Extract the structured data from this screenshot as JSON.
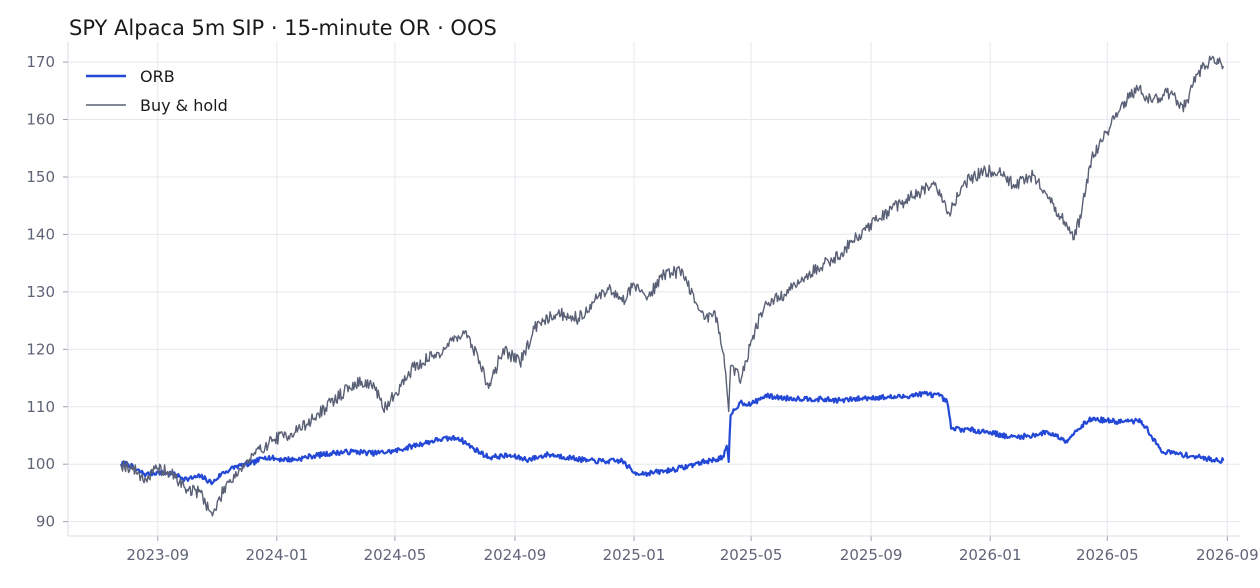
{
  "chart_data": {
    "type": "line",
    "title": "SPY Alpaca 5m SIP · 15-minute OR · OOS",
    "xlabel": "",
    "ylabel": "",
    "xlim": [
      "2023-06-01",
      "2026-09-14"
    ],
    "ylim": [
      87.5,
      173.5
    ],
    "x_ticks": [
      "2023-09",
      "2024-01",
      "2024-05",
      "2024-09",
      "2025-01",
      "2025-05",
      "2025-09",
      "2026-01",
      "2026-05",
      "2026-09"
    ],
    "y_ticks": [
      90,
      100,
      110,
      120,
      130,
      140,
      150,
      160,
      170
    ],
    "grid": true,
    "legend_position": "top-left",
    "colors": {
      "ORB": "#2448d6",
      "Buy & hold": "#5a6075",
      "grid": "#e6e8ee",
      "tick_text": "#5f6577"
    },
    "series": [
      {
        "name": "ORB",
        "points": [
          [
            "2023-07-25",
            100.0
          ],
          [
            "2023-08-01",
            100.1
          ],
          [
            "2023-08-10",
            99.0
          ],
          [
            "2023-08-20",
            98.2
          ],
          [
            "2023-09-01",
            98.6
          ],
          [
            "2023-09-15",
            98.3
          ],
          [
            "2023-10-01",
            97.4
          ],
          [
            "2023-10-15",
            97.9
          ],
          [
            "2023-10-27",
            96.7
          ],
          [
            "2023-11-05",
            98.3
          ],
          [
            "2023-11-20",
            99.6
          ],
          [
            "2023-12-05",
            100.0
          ],
          [
            "2023-12-20",
            101.3
          ],
          [
            "2024-01-01",
            100.9
          ],
          [
            "2024-01-20",
            100.8
          ],
          [
            "2024-02-05",
            101.4
          ],
          [
            "2024-03-01",
            102.0
          ],
          [
            "2024-03-20",
            102.2
          ],
          [
            "2024-04-10",
            101.9
          ],
          [
            "2024-05-01",
            102.3
          ],
          [
            "2024-05-20",
            103.2
          ],
          [
            "2024-06-15",
            104.3
          ],
          [
            "2024-07-05",
            104.6
          ],
          [
            "2024-07-20",
            102.8
          ],
          [
            "2024-08-05",
            101.2
          ],
          [
            "2024-08-25",
            101.5
          ],
          [
            "2024-09-15",
            100.8
          ],
          [
            "2024-10-05",
            101.7
          ],
          [
            "2024-10-25",
            101.2
          ],
          [
            "2024-11-15",
            100.6
          ],
          [
            "2024-12-05",
            100.5
          ],
          [
            "2024-12-20",
            100.6
          ],
          [
            "2025-01-01",
            98.5
          ],
          [
            "2025-01-15",
            98.4
          ],
          [
            "2025-02-01",
            98.8
          ],
          [
            "2025-02-20",
            99.4
          ],
          [
            "2025-03-10",
            100.3
          ],
          [
            "2025-03-25",
            100.8
          ],
          [
            "2025-04-03",
            101.3
          ],
          [
            "2025-04-06",
            103.2
          ],
          [
            "2025-04-08",
            100.4
          ],
          [
            "2025-04-10",
            108.5
          ],
          [
            "2025-04-20",
            110.8
          ],
          [
            "2025-05-01",
            110.4
          ],
          [
            "2025-05-15",
            111.9
          ],
          [
            "2025-06-05",
            111.5
          ],
          [
            "2025-07-01",
            111.4
          ],
          [
            "2025-08-01",
            111.1
          ],
          [
            "2025-09-01",
            111.6
          ],
          [
            "2025-10-01",
            111.7
          ],
          [
            "2025-10-25",
            112.3
          ],
          [
            "2025-11-10",
            111.9
          ],
          [
            "2025-11-18",
            110.8
          ],
          [
            "2025-11-22",
            106.2
          ],
          [
            "2025-12-10",
            106.0
          ],
          [
            "2026-01-01",
            105.6
          ],
          [
            "2026-01-20",
            104.7
          ],
          [
            "2026-02-10",
            104.9
          ],
          [
            "2026-03-01",
            105.6
          ],
          [
            "2026-03-20",
            104.1
          ],
          [
            "2026-04-05",
            106.8
          ],
          [
            "2026-04-15",
            107.9
          ],
          [
            "2026-05-10",
            107.4
          ],
          [
            "2026-06-05",
            107.5
          ],
          [
            "2026-06-15",
            105.0
          ],
          [
            "2026-06-25",
            102.3
          ],
          [
            "2026-07-20",
            101.6
          ],
          [
            "2026-08-10",
            101.0
          ],
          [
            "2026-08-28",
            100.6
          ]
        ]
      },
      {
        "name": "Buy & hold",
        "points": [
          [
            "2023-07-25",
            100.0
          ],
          [
            "2023-08-05",
            99.4
          ],
          [
            "2023-08-20",
            97.3
          ],
          [
            "2023-09-01",
            99.3
          ],
          [
            "2023-09-15",
            98.3
          ],
          [
            "2023-10-01",
            95.6
          ],
          [
            "2023-10-15",
            95.1
          ],
          [
            "2023-10-27",
            91.0
          ],
          [
            "2023-11-10",
            96.5
          ],
          [
            "2023-11-25",
            99.2
          ],
          [
            "2023-12-10",
            101.8
          ],
          [
            "2023-12-28",
            104.3
          ],
          [
            "2024-01-15",
            105.3
          ],
          [
            "2024-02-01",
            107.0
          ],
          [
            "2024-02-20",
            109.8
          ],
          [
            "2024-03-10",
            112.7
          ],
          [
            "2024-03-28",
            114.4
          ],
          [
            "2024-04-10",
            113.6
          ],
          [
            "2024-04-19",
            109.5
          ],
          [
            "2024-05-01",
            112.2
          ],
          [
            "2024-05-20",
            116.9
          ],
          [
            "2024-06-15",
            119.4
          ],
          [
            "2024-07-10",
            123.2
          ],
          [
            "2024-07-25",
            118.8
          ],
          [
            "2024-08-05",
            113.2
          ],
          [
            "2024-08-20",
            120.1
          ],
          [
            "2024-09-06",
            117.6
          ],
          [
            "2024-09-25",
            124.9
          ],
          [
            "2024-10-15",
            126.3
          ],
          [
            "2024-11-05",
            125.4
          ],
          [
            "2024-11-20",
            128.1
          ],
          [
            "2024-12-05",
            130.7
          ],
          [
            "2024-12-20",
            128.3
          ],
          [
            "2025-01-01",
            131.4
          ],
          [
            "2025-01-15",
            129.1
          ],
          [
            "2025-02-01",
            133.2
          ],
          [
            "2025-02-20",
            133.6
          ],
          [
            "2025-03-05",
            128.2
          ],
          [
            "2025-03-15",
            125.3
          ],
          [
            "2025-03-25",
            126.6
          ],
          [
            "2025-04-03",
            119.2
          ],
          [
            "2025-04-08",
            109.2
          ],
          [
            "2025-04-10",
            117.1
          ],
          [
            "2025-04-21",
            114.9
          ],
          [
            "2025-05-01",
            121.5
          ],
          [
            "2025-05-15",
            127.8
          ],
          [
            "2025-06-05",
            129.5
          ],
          [
            "2025-06-25",
            132.6
          ],
          [
            "2025-07-15",
            134.9
          ],
          [
            "2025-08-01",
            136.6
          ],
          [
            "2025-08-20",
            140.0
          ],
          [
            "2025-09-10",
            142.8
          ],
          [
            "2025-10-01",
            145.4
          ],
          [
            "2025-10-20",
            147.3
          ],
          [
            "2025-11-05",
            148.6
          ],
          [
            "2025-11-20",
            143.7
          ],
          [
            "2025-12-05",
            148.9
          ],
          [
            "2025-12-25",
            151.1
          ],
          [
            "2026-01-10",
            150.9
          ],
          [
            "2026-01-25",
            148.7
          ],
          [
            "2026-02-15",
            150.3
          ],
          [
            "2026-03-01",
            146.3
          ],
          [
            "2026-03-15",
            142.9
          ],
          [
            "2026-03-28",
            139.1
          ],
          [
            "2026-04-05",
            144.2
          ],
          [
            "2026-04-15",
            153.5
          ],
          [
            "2026-05-01",
            157.9
          ],
          [
            "2026-05-15",
            162.4
          ],
          [
            "2026-06-01",
            165.3
          ],
          [
            "2026-06-15",
            163.2
          ],
          [
            "2026-07-01",
            164.7
          ],
          [
            "2026-07-20",
            162.2
          ],
          [
            "2026-08-01",
            167.8
          ],
          [
            "2026-08-15",
            170.4
          ],
          [
            "2026-08-28",
            169.3
          ]
        ]
      }
    ]
  }
}
